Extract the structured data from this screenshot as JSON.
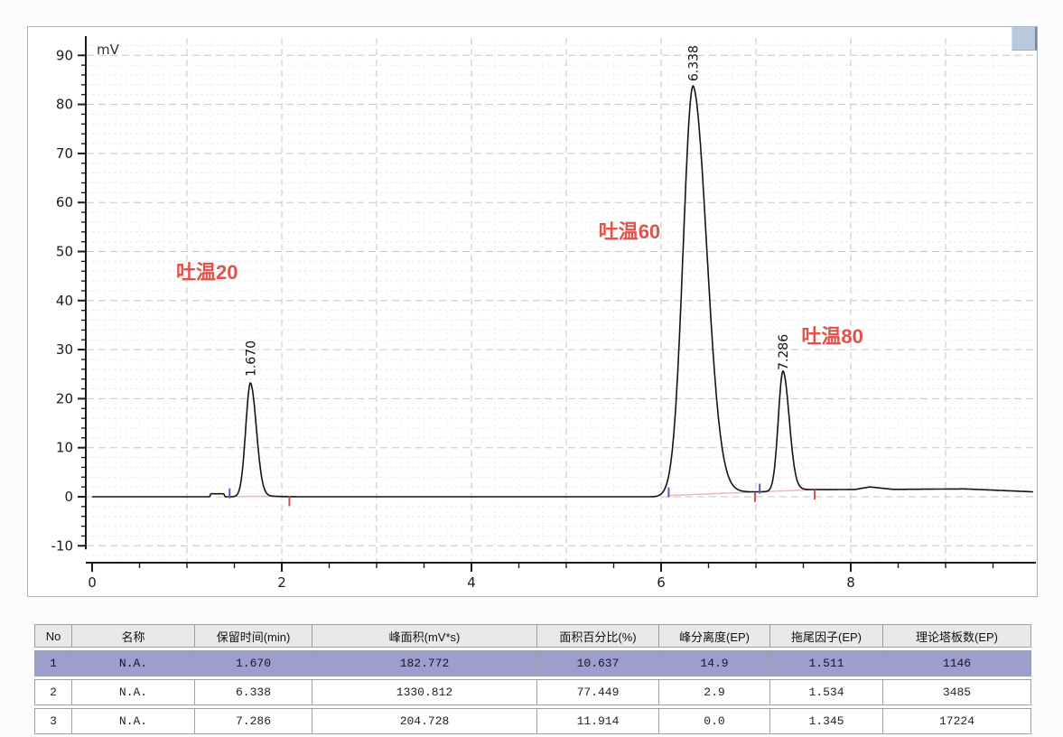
{
  "colors": {
    "annotation": "#e0524a",
    "curve": "#141414",
    "axis": "#1c1c1c",
    "grid_major": "#c6c6c6",
    "grid_minor": "#ececec",
    "grid_minor_v": "#efefef",
    "integration_baseline": "#f2b6b6",
    "peak_start_tick": "#5a5ac0",
    "peak_end_tick": "#d94a55",
    "selected_row_bg": "#9e9ecd",
    "header_bg": "#e9e9e9",
    "scroll_thumb": "#b7c9df",
    "panel_border": "#a9b3bd"
  },
  "chart_data": {
    "type": "line",
    "title": "",
    "xlabel": "",
    "ylabel": "mV",
    "y_unit_label": "mV",
    "xlim": [
      0,
      9.93
    ],
    "ylim": [
      -13.5,
      95
    ],
    "x_major_ticks": [
      0,
      2,
      4,
      6,
      8
    ],
    "x_minor_step": 0.5,
    "y_major_ticks": [
      -10,
      0,
      10,
      20,
      30,
      40,
      50,
      60,
      70,
      80,
      90
    ],
    "y_minor_step": 2,
    "grid": "dashed",
    "peaks": [
      {
        "rt": 1.67,
        "rt_label": "1.670",
        "name": "吐温20",
        "height_mv": 23.2,
        "area_mvs": 182.772,
        "area_pct": 10.637,
        "resolution_ep": 14.9,
        "tailing_ep": 1.511,
        "plates_ep": 1146,
        "sigma_left": 0.05,
        "sigma_right": 0.062,
        "tail_tau": 0.1,
        "tail_frac": 0.05
      },
      {
        "rt": 6.338,
        "rt_label": "6.338",
        "name": "吐温60",
        "height_mv": 83.4,
        "area_mvs": 1330.812,
        "area_pct": 77.449,
        "resolution_ep": 2.9,
        "tailing_ep": 1.534,
        "plates_ep": 3485,
        "sigma_left": 0.105,
        "sigma_right": 0.145,
        "tail_tau": 0.17,
        "tail_frac": 0.06
      },
      {
        "rt": 7.286,
        "rt_label": "7.286",
        "name": "吐温80",
        "height_mv": 24.5,
        "area_mvs": 204.728,
        "area_pct": 11.914,
        "resolution_ep": 0.0,
        "tailing_ep": 1.345,
        "plates_ep": 17224,
        "sigma_left": 0.05,
        "sigma_right": 0.065,
        "tail_tau": 0.11,
        "tail_frac": 0.06
      }
    ],
    "annotations": [
      {
        "text": "吐温20",
        "t": 0.886,
        "mv": 45.9
      },
      {
        "text": "吐温60",
        "t": 5.34,
        "mv": 54.1
      },
      {
        "text": "吐温80",
        "t": 7.48,
        "mv": 32.8
      }
    ],
    "baseline_nodes": [
      [
        0,
        0
      ],
      [
        1.24,
        0
      ],
      [
        1.25,
        0.6
      ],
      [
        1.39,
        0.6
      ],
      [
        1.4,
        0
      ],
      [
        5.95,
        0
      ],
      [
        6.05,
        0.2
      ],
      [
        7.0,
        0.9
      ],
      [
        7.62,
        1.4
      ],
      [
        8.05,
        1.5
      ],
      [
        8.2,
        2.0
      ],
      [
        8.45,
        1.5
      ],
      [
        9.2,
        1.6
      ],
      [
        9.93,
        1.0
      ]
    ],
    "integration": {
      "peak_starts": [
        1.45,
        6.08,
        7.04
      ],
      "peak_ends": [
        2.08,
        6.99,
        7.62
      ],
      "baseline_segments": [
        [
          1.45,
          0.05,
          2.08,
          0.12
        ],
        [
          6.08,
          0.25,
          7.62,
          1.45
        ]
      ]
    }
  },
  "table": {
    "headers": [
      "No",
      "名称",
      "保留时间(min)",
      "峰面积(mV*s)",
      "面积百分比(%)",
      "峰分离度(EP)",
      "拖尾因子(EP)",
      "理论塔板数(EP)"
    ],
    "rows": [
      [
        "1",
        "N.A.",
        "1.670",
        "182.772",
        "10.637",
        "14.9",
        "1.511",
        "1146"
      ],
      [
        "2",
        "N.A.",
        "6.338",
        "1330.812",
        "77.449",
        "2.9",
        "1.534",
        "3485"
      ],
      [
        "3",
        "N.A.",
        "7.286",
        "204.728",
        "11.914",
        "0.0",
        "1.345",
        "17224"
      ]
    ],
    "selected_row": 0
  }
}
